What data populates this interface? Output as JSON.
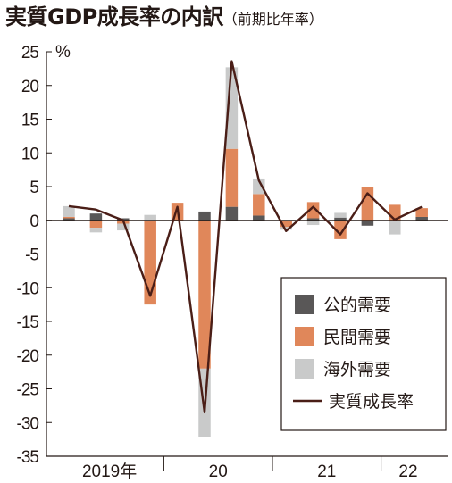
{
  "chart_data": {
    "type": "bar",
    "title": "実質GDP成長率の内訳",
    "subtitle": "（前期比年率）",
    "ylabel": "%",
    "ylim": [
      -35,
      25
    ],
    "yticks": [
      25,
      20,
      15,
      10,
      5,
      0,
      -5,
      -10,
      -15,
      -20,
      -25,
      -30,
      -35
    ],
    "period_labels": [
      "2019年",
      "20",
      "21",
      "22"
    ],
    "periods_per_label": [
      4,
      4,
      4,
      2
    ],
    "stacked": true,
    "series": [
      {
        "name": "公的需要",
        "color": "#595757",
        "kind": "bar",
        "values": [
          0.3,
          1.0,
          0.3,
          0.0,
          0.0,
          1.3,
          2.0,
          0.7,
          0.0,
          0.3,
          0.4,
          -0.8,
          0.0,
          0.5
        ]
      },
      {
        "name": "民間需要",
        "color": "#e0875a",
        "kind": "bar",
        "values": [
          0.2,
          -1.1,
          -0.5,
          -12.5,
          2.6,
          -22.0,
          8.6,
          3.2,
          -1.0,
          2.4,
          -2.8,
          4.9,
          2.3,
          1.3
        ]
      },
      {
        "name": "海外需要",
        "color": "#c9caca",
        "kind": "bar",
        "values": [
          1.6,
          -0.7,
          -1.0,
          0.8,
          0.0,
          -10.1,
          12.1,
          2.3,
          -0.4,
          -0.7,
          0.7,
          0.0,
          -2.1,
          0.0
        ]
      },
      {
        "name": "実質成長率",
        "color": "#4a1e17",
        "kind": "line",
        "values": [
          2.1,
          1.6,
          0.0,
          -11.2,
          2.0,
          -28.5,
          23.6,
          5.9,
          -1.6,
          2.0,
          -2.1,
          4.0,
          0.1,
          2.0
        ]
      }
    ],
    "legend_position": "bottom-right",
    "grid": false
  }
}
